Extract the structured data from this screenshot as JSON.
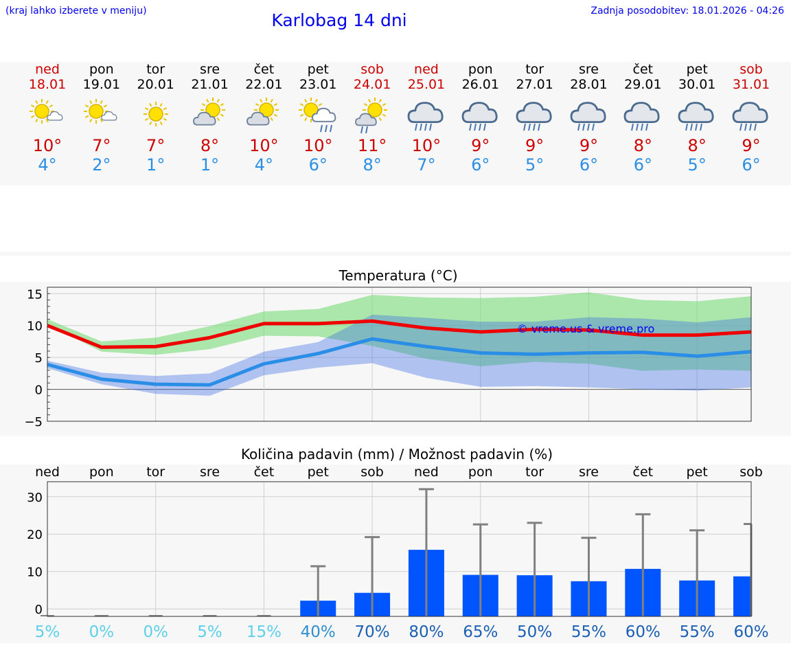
{
  "header": {
    "hint": "(kraj lahko izberete v meniju)",
    "title": "Karlobag 14 dni",
    "updated": "Zadnja posodobitev: 18.01.2026 - 04:26"
  },
  "colors": {
    "weekend": "#cc0000",
    "weekday": "#000000",
    "tmax": "#cc0000",
    "tmin": "#2a8ee6",
    "bar": "#0055ff",
    "link": "#0000ee"
  },
  "days": [
    {
      "name": "ned",
      "date": "18.01",
      "weekend": true,
      "icon": "sun-cloud-icon",
      "max": "10°",
      "min": "4°"
    },
    {
      "name": "pon",
      "date": "19.01",
      "weekend": false,
      "icon": "sun-cloud-icon",
      "max": "7°",
      "min": "2°"
    },
    {
      "name": "tor",
      "date": "20.01",
      "weekend": false,
      "icon": "sun-icon",
      "max": "7°",
      "min": "1°"
    },
    {
      "name": "sre",
      "date": "21.01",
      "weekend": false,
      "icon": "cloud-sun-icon",
      "max": "8°",
      "min": "1°"
    },
    {
      "name": "čet",
      "date": "22.01",
      "weekend": false,
      "icon": "cloud-sun-icon",
      "max": "10°",
      "min": "4°"
    },
    {
      "name": "pet",
      "date": "23.01",
      "weekend": false,
      "icon": "sun-rain-icon",
      "max": "10°",
      "min": "6°"
    },
    {
      "name": "sob",
      "date": "24.01",
      "weekend": true,
      "icon": "sun-cloud-rain-icon",
      "max": "11°",
      "min": "8°"
    },
    {
      "name": "ned",
      "date": "25.01",
      "weekend": true,
      "icon": "rain-cloud-icon",
      "max": "10°",
      "min": "7°"
    },
    {
      "name": "pon",
      "date": "26.01",
      "weekend": false,
      "icon": "rain-cloud-icon",
      "max": "9°",
      "min": "6°"
    },
    {
      "name": "tor",
      "date": "27.01",
      "weekend": false,
      "icon": "rain-cloud-icon",
      "max": "9°",
      "min": "5°"
    },
    {
      "name": "sre",
      "date": "28.01",
      "weekend": false,
      "icon": "rain-cloud-icon",
      "max": "9°",
      "min": "6°"
    },
    {
      "name": "čet",
      "date": "29.01",
      "weekend": false,
      "icon": "rain-cloud-icon",
      "max": "8°",
      "min": "6°"
    },
    {
      "name": "pet",
      "date": "30.01",
      "weekend": false,
      "icon": "rain-cloud-icon",
      "max": "8°",
      "min": "5°"
    },
    {
      "name": "sob",
      "date": "31.01",
      "weekend": true,
      "icon": "rain-cloud-icon",
      "max": "9°",
      "min": "6°"
    }
  ],
  "chart_data": [
    {
      "type": "line",
      "title": "Temperatura (°C)",
      "watermark": "© vreme.us & vreme.pro",
      "ylim": [
        -5,
        16
      ],
      "yticks": [
        "15",
        "10",
        "5",
        "0",
        "−5"
      ],
      "ytick_values": [
        15,
        10,
        5,
        0,
        -5
      ],
      "x": [
        0,
        1,
        2,
        3,
        4,
        5,
        6,
        7,
        8,
        9,
        10,
        11,
        12,
        13
      ],
      "series": [
        {
          "name": "max",
          "color": "#ee0000",
          "values": [
            10,
            6.6,
            6.7,
            8.1,
            10.3,
            10.3,
            10.7,
            9.6,
            9.0,
            9.4,
            9.3,
            8.5,
            8.5,
            9.0
          ],
          "band_low": [
            10.2,
            5.9,
            5.4,
            6.3,
            8.4,
            8.3,
            6.8,
            4.8,
            3.6,
            4.3,
            4.0,
            2.9,
            3.1,
            2.9
          ],
          "band_high": [
            11.0,
            7.5,
            8.1,
            9.9,
            12.2,
            12.6,
            14.8,
            14.4,
            14.3,
            14.5,
            15.2,
            14.0,
            13.8,
            14.6
          ]
        },
        {
          "name": "min",
          "color": "#2a8ee6",
          "values": [
            3.9,
            1.6,
            0.8,
            0.7,
            4.0,
            5.6,
            7.9,
            6.7,
            5.7,
            5.5,
            5.7,
            5.8,
            5.2,
            5.9
          ],
          "band_low": [
            3.3,
            0.8,
            -0.7,
            -1.0,
            2.2,
            3.4,
            4.1,
            1.8,
            0.4,
            0.5,
            0.3,
            0.0,
            -0.2,
            0.3
          ],
          "band_high": [
            4.5,
            2.6,
            2.1,
            2.5,
            5.9,
            7.4,
            11.7,
            11.2,
            10.6,
            10.6,
            11.3,
            11.1,
            10.5,
            11.3
          ]
        }
      ]
    },
    {
      "type": "bar",
      "title": "Količina padavin (mm) / Možnost padavin (%)",
      "ylim": [
        -2,
        34
      ],
      "yticks": [
        "30",
        "20",
        "10",
        "0"
      ],
      "ytick_values": [
        30,
        20,
        10,
        0
      ],
      "categories": [
        "ned",
        "pon",
        "tor",
        "sre",
        "čet",
        "pet",
        "sob",
        "ned",
        "pon",
        "tor",
        "sre",
        "čet",
        "pet",
        "sob"
      ],
      "values": [
        0,
        0,
        0,
        0,
        0,
        2.2,
        4.3,
        15.8,
        9.1,
        9.0,
        7.4,
        10.7,
        7.6,
        8.7
      ],
      "error_high": [
        0,
        0,
        0,
        0,
        0,
        11.4,
        19.2,
        32.0,
        22.6,
        23.0,
        19.0,
        25.3,
        21.0,
        22.7
      ],
      "probability": [
        "5%",
        "0%",
        "0%",
        "5%",
        "15%",
        "40%",
        "70%",
        "80%",
        "65%",
        "50%",
        "55%",
        "60%",
        "55%",
        "60%"
      ]
    }
  ]
}
